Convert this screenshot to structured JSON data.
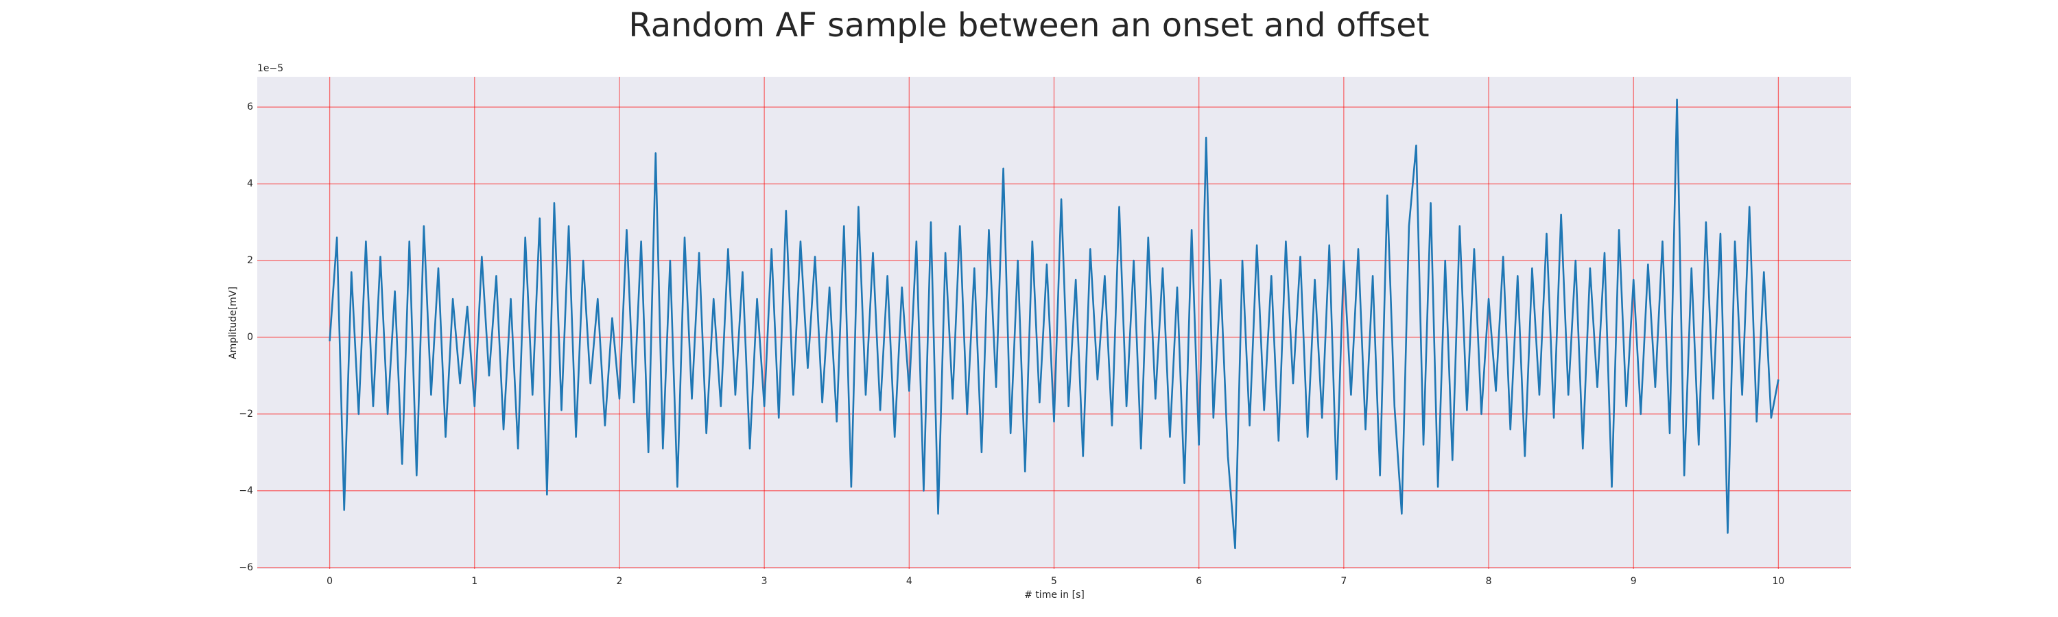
{
  "chart_data": {
    "type": "line",
    "title": "Random AF sample between an onset and offset",
    "xlabel": "# time in [s]",
    "ylabel": "Amplitude[mV]",
    "y_offset_label": "1e−5",
    "xlim": [
      -0.5,
      10.5
    ],
    "ylim": [
      -6.04,
      6.79
    ],
    "xticks": [
      0,
      1,
      2,
      3,
      4,
      5,
      6,
      7,
      8,
      9,
      10
    ],
    "yticks": [
      {
        "value": -6,
        "label": "−6"
      },
      {
        "value": -4,
        "label": "−4"
      },
      {
        "value": -2,
        "label": "−2"
      },
      0,
      2,
      4,
      6
    ],
    "grid": true,
    "grid_color": "#ff0000",
    "background": "#eaeaf2",
    "series": [
      {
        "color": "#1f77b4",
        "x": [
          0,
          0.05,
          0.1,
          0.15,
          0.2,
          0.25,
          0.3,
          0.35,
          0.4,
          0.45,
          0.5,
          0.55,
          0.6,
          0.65,
          0.7,
          0.75,
          0.8,
          0.85,
          0.9,
          0.95,
          1,
          1.05,
          1.1,
          1.15,
          1.2,
          1.25,
          1.3,
          1.35,
          1.4,
          1.45,
          1.5,
          1.55,
          1.6,
          1.65,
          1.7,
          1.75,
          1.8,
          1.85,
          1.9,
          1.95,
          2,
          2.05,
          2.1,
          2.15,
          2.2,
          2.25,
          2.3,
          2.35,
          2.4,
          2.45,
          2.5,
          2.55,
          2.6,
          2.65,
          2.7,
          2.75,
          2.8,
          2.85,
          2.9,
          2.95,
          3,
          3.05,
          3.1,
          3.15,
          3.2,
          3.25,
          3.3,
          3.35,
          3.4,
          3.45,
          3.5,
          3.55,
          3.6,
          3.65,
          3.7,
          3.75,
          3.8,
          3.85,
          3.9,
          3.95,
          4,
          4.05,
          4.1,
          4.15,
          4.2,
          4.25,
          4.3,
          4.35,
          4.4,
          4.45,
          4.5,
          4.55,
          4.6,
          4.65,
          4.7,
          4.75,
          4.8,
          4.85,
          4.9,
          4.95,
          5,
          5.05,
          5.1,
          5.15,
          5.2,
          5.25,
          5.3,
          5.35,
          5.4,
          5.45,
          5.5,
          5.55,
          5.6,
          5.65,
          5.7,
          5.75,
          5.8,
          5.85,
          5.9,
          5.95,
          6,
          6.05,
          6.1,
          6.15,
          6.2,
          6.25,
          6.3,
          6.35,
          6.4,
          6.45,
          6.5,
          6.55,
          6.6,
          6.65,
          6.7,
          6.75,
          6.8,
          6.85,
          6.9,
          6.95,
          7,
          7.05,
          7.1,
          7.15,
          7.2,
          7.25,
          7.3,
          7.35,
          7.4,
          7.45,
          7.5,
          7.55,
          7.6,
          7.65,
          7.7,
          7.75,
          7.8,
          7.85,
          7.9,
          7.95,
          8,
          8.05,
          8.1,
          8.15,
          8.2,
          8.25,
          8.3,
          8.35,
          8.4,
          8.45,
          8.5,
          8.55,
          8.6,
          8.65,
          8.7,
          8.75,
          8.8,
          8.85,
          8.9,
          8.95,
          9,
          9.05,
          9.1,
          9.15,
          9.2,
          9.25,
          9.3,
          9.35,
          9.4,
          9.45,
          9.5,
          9.55,
          9.6,
          9.65,
          9.7,
          9.75,
          9.8,
          9.85,
          9.9,
          9.95,
          10
        ],
        "values": [
          -0.1,
          2.6,
          -4.5,
          1.7,
          -2.0,
          2.5,
          -1.8,
          2.1,
          -2.0,
          1.2,
          -3.3,
          2.5,
          -3.6,
          2.9,
          -1.5,
          1.8,
          -2.6,
          1.0,
          -1.2,
          0.8,
          -1.8,
          2.1,
          -1.0,
          1.6,
          -2.4,
          1.0,
          -2.9,
          2.6,
          -1.5,
          3.1,
          -4.1,
          3.5,
          -1.9,
          2.9,
          -2.6,
          2.0,
          -1.2,
          1.0,
          -2.3,
          0.5,
          -1.6,
          2.8,
          -1.7,
          2.5,
          -3.0,
          4.8,
          -2.9,
          2.0,
          -3.9,
          2.6,
          -1.6,
          2.2,
          -2.5,
          1.0,
          -1.8,
          2.3,
          -1.5,
          1.7,
          -2.9,
          1.0,
          -1.8,
          2.3,
          -2.1,
          3.3,
          -1.5,
          2.5,
          -0.8,
          2.1,
          -1.7,
          1.3,
          -2.2,
          2.9,
          -3.9,
          3.4,
          -1.5,
          2.2,
          -1.9,
          1.6,
          -2.6,
          1.3,
          -1.4,
          2.5,
          -4.0,
          3.0,
          -4.6,
          2.2,
          -1.6,
          2.9,
          -2.0,
          1.8,
          -3.0,
          2.8,
          -1.3,
          4.4,
          -2.5,
          2.0,
          -3.5,
          2.5,
          -1.7,
          1.9,
          -2.2,
          3.6,
          -1.8,
          1.5,
          -3.1,
          2.3,
          -1.1,
          1.6,
          -2.3,
          3.4,
          -1.8,
          2.0,
          -2.9,
          2.6,
          -1.6,
          1.8,
          -2.6,
          1.3,
          -3.8,
          2.8,
          -2.8,
          5.2,
          -2.1,
          1.5,
          -3.1,
          -5.5,
          2.0,
          -2.3,
          2.4,
          -1.9,
          1.6,
          -2.7,
          2.5,
          -1.2,
          2.1,
          -2.6,
          1.5,
          -2.1,
          2.4,
          -3.7,
          2.0,
          -1.5,
          2.3,
          -2.4,
          1.6,
          -3.6,
          3.7,
          -1.8,
          -4.6,
          2.9,
          5.0,
          -2.8,
          3.5,
          -3.9,
          2.0,
          -3.2,
          2.9,
          -1.9,
          2.3,
          -2.0,
          1.0,
          -1.4,
          2.1,
          -2.4,
          1.6,
          -3.1,
          1.8,
          -1.5,
          2.7,
          -2.1,
          3.2,
          -1.5,
          2.0,
          -2.9,
          1.8,
          -1.3,
          2.2,
          -3.9,
          2.8,
          -1.8,
          1.5,
          -2.0,
          1.9,
          -1.3,
          2.5,
          -2.5,
          6.2,
          -3.6,
          1.8,
          -2.8,
          3.0,
          -1.6,
          2.7,
          -5.1,
          2.5,
          -1.5,
          3.4,
          -2.2,
          1.7,
          -2.1,
          -1.1
        ]
      }
    ]
  }
}
